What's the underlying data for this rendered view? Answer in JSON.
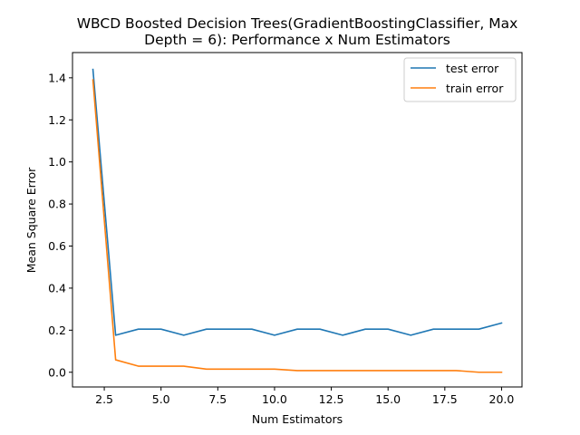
{
  "chart_data": {
    "type": "line",
    "title_lines": [
      "WBCD Boosted Decision Trees(GradientBoostingClassifier, Max",
      "Depth = 6): Performance x Num Estimators"
    ],
    "xlabel": "Num Estimators",
    "ylabel": "Mean Square Error",
    "xlim": [
      1.1,
      20.9
    ],
    "ylim": [
      -0.07,
      1.52
    ],
    "xticks": [
      2.5,
      5.0,
      7.5,
      10.0,
      12.5,
      15.0,
      17.5,
      20.0
    ],
    "xtick_labels": [
      "2.5",
      "5.0",
      "7.5",
      "10.0",
      "12.5",
      "15.0",
      "17.5",
      "20.0"
    ],
    "yticks": [
      0.0,
      0.2,
      0.4,
      0.6,
      0.8,
      1.0,
      1.2,
      1.4
    ],
    "ytick_labels": [
      "0.0",
      "0.2",
      "0.4",
      "0.6",
      "0.8",
      "1.0",
      "1.2",
      "1.4"
    ],
    "legend_position": "top-right",
    "grid": false,
    "x": [
      2,
      3,
      4,
      5,
      6,
      7,
      8,
      9,
      10,
      11,
      12,
      13,
      14,
      15,
      16,
      17,
      18,
      19,
      20
    ],
    "series": [
      {
        "name": "test error",
        "color": "#1f77b4",
        "values": [
          1.44,
          0.176,
          0.205,
          0.205,
          0.176,
          0.205,
          0.205,
          0.205,
          0.176,
          0.205,
          0.205,
          0.176,
          0.205,
          0.205,
          0.176,
          0.205,
          0.205,
          0.205,
          0.234
        ]
      },
      {
        "name": "train error",
        "color": "#ff7f0e",
        "values": [
          1.39,
          0.059,
          0.029,
          0.029,
          0.029,
          0.015,
          0.015,
          0.015,
          0.015,
          0.008,
          0.008,
          0.008,
          0.008,
          0.008,
          0.008,
          0.008,
          0.008,
          0.0,
          0.0
        ]
      }
    ]
  }
}
